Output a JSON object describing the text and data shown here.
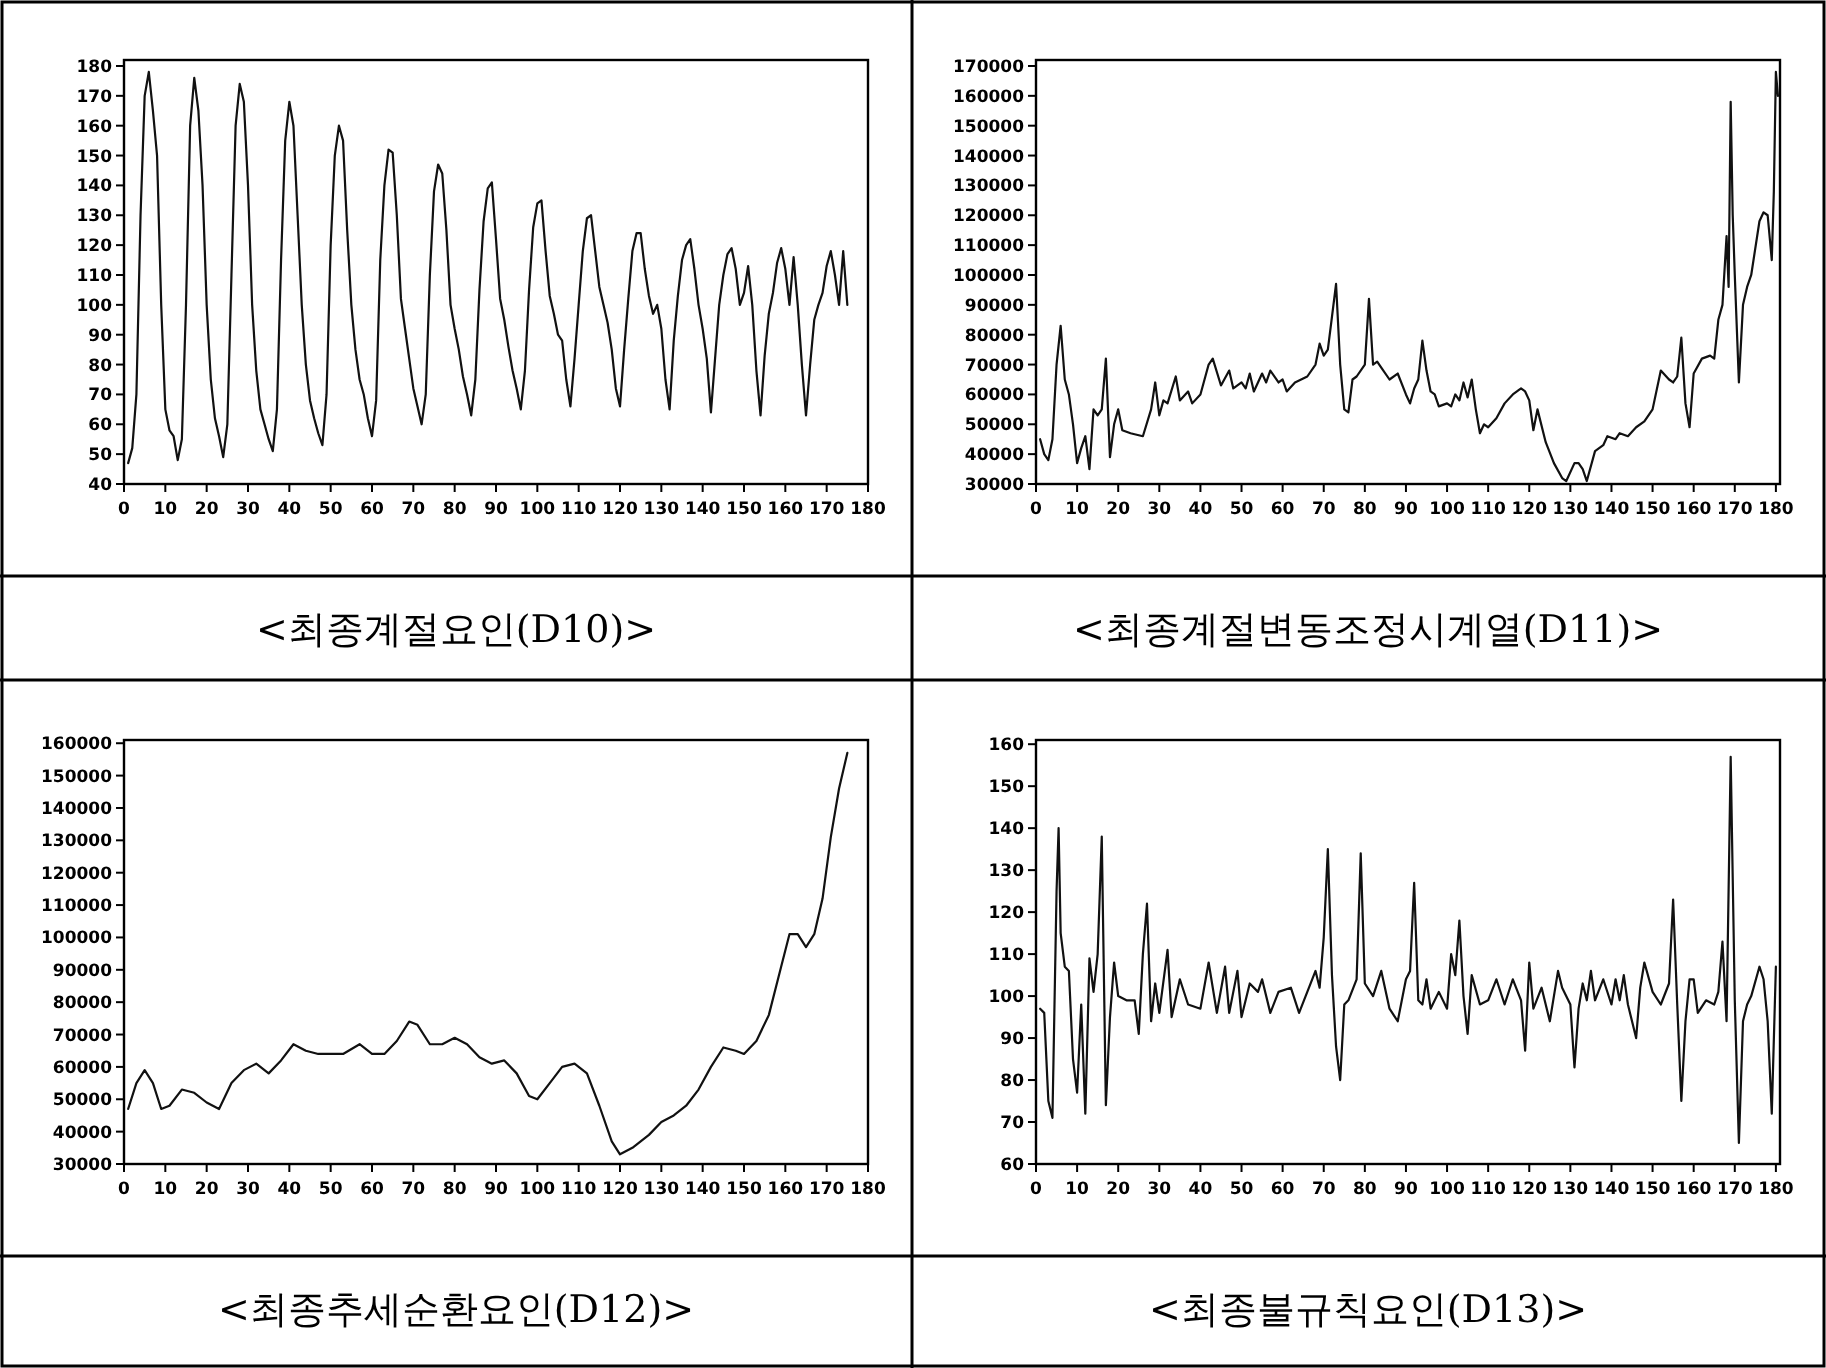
{
  "chart_data": [
    {
      "type": "line",
      "title": "<최종계절요인(D10)>",
      "color": "#111111",
      "xlim": [
        0,
        180
      ],
      "xticks": [
        0,
        10,
        20,
        30,
        40,
        50,
        60,
        70,
        80,
        90,
        100,
        110,
        120,
        130,
        140,
        150,
        160,
        170,
        180
      ],
      "ylim": [
        40,
        182
      ],
      "yticks": [
        40,
        50,
        60,
        70,
        80,
        90,
        100,
        110,
        120,
        130,
        140,
        150,
        160,
        170,
        180
      ],
      "x": [
        1,
        2,
        3,
        4,
        5,
        6,
        7,
        8,
        9,
        10,
        11,
        12,
        13,
        14,
        15,
        16,
        17,
        18,
        19,
        20,
        21,
        22,
        23,
        24,
        25,
        26,
        27,
        28,
        29,
        30,
        31,
        32,
        33,
        34,
        35,
        36,
        37,
        38,
        39,
        40,
        41,
        42,
        43,
        44,
        45,
        46,
        47,
        48,
        49,
        50,
        51,
        52,
        53,
        54,
        55,
        56,
        57,
        58,
        59,
        60,
        61,
        62,
        63,
        64,
        65,
        66,
        67,
        68,
        69,
        70,
        71,
        72,
        73,
        74,
        75,
        76,
        77,
        78,
        79,
        80,
        81,
        82,
        83,
        84,
        85,
        86,
        87,
        88,
        89,
        90,
        91,
        92,
        93,
        94,
        95,
        96,
        97,
        98,
        99,
        100,
        101,
        102,
        103,
        104,
        105,
        106,
        107,
        108,
        109,
        110,
        111,
        112,
        113,
        114,
        115,
        116,
        117,
        118,
        119,
        120,
        121,
        122,
        123,
        124,
        125,
        126,
        127,
        128,
        129,
        130,
        131,
        132,
        133,
        134,
        135,
        136,
        137,
        138,
        139,
        140,
        141,
        142,
        143,
        144,
        145,
        146,
        147,
        148,
        149,
        150,
        151,
        152,
        153,
        154,
        155,
        156,
        157,
        158,
        159,
        160,
        161,
        162,
        163,
        164,
        165,
        166,
        167,
        168,
        169,
        170,
        171,
        172,
        173,
        174,
        175
      ],
      "values": [
        47,
        52,
        70,
        130,
        170,
        178,
        165,
        150,
        100,
        65,
        58,
        56,
        48,
        55,
        100,
        160,
        176,
        165,
        140,
        100,
        75,
        62,
        56,
        49,
        60,
        110,
        160,
        174,
        168,
        140,
        100,
        78,
        65,
        60,
        55,
        51,
        65,
        115,
        155,
        168,
        160,
        130,
        100,
        80,
        68,
        62,
        57,
        53,
        70,
        120,
        150,
        160,
        155,
        125,
        100,
        85,
        75,
        70,
        62,
        56,
        68,
        115,
        140,
        152,
        151,
        130,
        102,
        92,
        82,
        72,
        66,
        60,
        70,
        110,
        138,
        147,
        144,
        125,
        100,
        92,
        85,
        76,
        70,
        63,
        75,
        105,
        128,
        139,
        141,
        122,
        102,
        95,
        86,
        78,
        72,
        65,
        78,
        105,
        126,
        134,
        135,
        118,
        103,
        97,
        90,
        88,
        75,
        66,
        82,
        100,
        118,
        129,
        130,
        118,
        106,
        100,
        94,
        85,
        72,
        66,
        85,
        102,
        118,
        124,
        124,
        112,
        103,
        97,
        100,
        92,
        75,
        65,
        88,
        103,
        115,
        120,
        122,
        112,
        100,
        92,
        82,
        64,
        82,
        100,
        110,
        117,
        119,
        112,
        100,
        104,
        113,
        100,
        78,
        63,
        83,
        97,
        104,
        114,
        119,
        112,
        100,
        116,
        100,
        80,
        63,
        80,
        95,
        100,
        104,
        113,
        118,
        110,
        100,
        118,
        100
      ]
    },
    {
      "type": "line",
      "title": "<최종계절변동조정시계열(D11)>",
      "color": "#111111",
      "xlim": [
        0,
        181
      ],
      "xticks": [
        0,
        10,
        20,
        30,
        40,
        50,
        60,
        70,
        80,
        90,
        100,
        110,
        120,
        130,
        140,
        150,
        160,
        170,
        180
      ],
      "ylim": [
        30000,
        172000
      ],
      "yticks": [
        30000,
        40000,
        50000,
        60000,
        70000,
        80000,
        90000,
        100000,
        110000,
        120000,
        130000,
        140000,
        150000,
        160000,
        170000
      ],
      "x": [
        1,
        2,
        3,
        4,
        5,
        6,
        7,
        8,
        9,
        10,
        11,
        12,
        13,
        14,
        15,
        16,
        17,
        18,
        19,
        20,
        21,
        23,
        26,
        28,
        29,
        30,
        31,
        32,
        34,
        35,
        37,
        38,
        40,
        42,
        43,
        45,
        47,
        48,
        50,
        51,
        52,
        53,
        55,
        56,
        57,
        59,
        60,
        61,
        63,
        66,
        68,
        69,
        70,
        71,
        72,
        73,
        74,
        75,
        76,
        77,
        78,
        80,
        81,
        82,
        83,
        84,
        86,
        88,
        90,
        91,
        92,
        93,
        94,
        95,
        96,
        97,
        98,
        100,
        101,
        102,
        103,
        104,
        105,
        106,
        107,
        108,
        109,
        110,
        112,
        114,
        116,
        118,
        119,
        120,
        121,
        122,
        124,
        126,
        128,
        129,
        131,
        132,
        133,
        134,
        136,
        138,
        139,
        141,
        142,
        144,
        146,
        148,
        150,
        152,
        154,
        155,
        156,
        157,
        158,
        159,
        160,
        162,
        164,
        165,
        166,
        167,
        168,
        168.5,
        169,
        169.5,
        170,
        171,
        172,
        173,
        174,
        176,
        177,
        178,
        179,
        179.5,
        180,
        180.5
      ],
      "values": [
        45000,
        40000,
        38000,
        45000,
        70000,
        83000,
        65000,
        60000,
        50000,
        37000,
        42000,
        46000,
        35000,
        55000,
        53000,
        55000,
        72000,
        39000,
        50000,
        55000,
        48000,
        47000,
        46000,
        55000,
        64000,
        53000,
        58000,
        57000,
        66000,
        58000,
        61000,
        57000,
        60000,
        70000,
        72000,
        63000,
        68000,
        62000,
        64000,
        62000,
        67000,
        61000,
        67000,
        64000,
        68000,
        64000,
        65000,
        61000,
        64000,
        66000,
        70000,
        77000,
        73000,
        75000,
        86000,
        97000,
        70000,
        55000,
        54000,
        65000,
        66000,
        70000,
        92000,
        70000,
        71000,
        69000,
        65000,
        67000,
        60000,
        57000,
        62000,
        65000,
        78000,
        68000,
        61000,
        60000,
        56000,
        57000,
        56000,
        60000,
        58000,
        64000,
        59000,
        65000,
        55000,
        47000,
        50000,
        49000,
        52000,
        57000,
        60000,
        62000,
        61000,
        58000,
        48000,
        55000,
        44000,
        37000,
        32000,
        31000,
        37000,
        37000,
        35000,
        31000,
        41000,
        43000,
        46000,
        45000,
        47000,
        46000,
        49000,
        51000,
        55000,
        68000,
        65000,
        64000,
        66000,
        79000,
        57000,
        49000,
        67000,
        72000,
        73000,
        72000,
        85000,
        90000,
        113000,
        96000,
        158000,
        120000,
        100000,
        64000,
        90000,
        96000,
        100000,
        118000,
        121000,
        120000,
        105000,
        128000,
        168000,
        160000
      ]
    },
    {
      "type": "line",
      "title": "<최종추세순환요인(D12)>",
      "color": "#111111",
      "xlim": [
        0,
        180
      ],
      "xticks": [
        0,
        10,
        20,
        30,
        40,
        50,
        60,
        70,
        80,
        90,
        100,
        110,
        120,
        130,
        140,
        150,
        160,
        170,
        180
      ],
      "ylim": [
        30000,
        161000
      ],
      "yticks": [
        30000,
        40000,
        50000,
        60000,
        70000,
        80000,
        90000,
        100000,
        110000,
        120000,
        130000,
        140000,
        150000,
        160000
      ],
      "x": [
        1,
        3,
        5,
        7,
        9,
        11,
        14,
        17,
        20,
        23,
        26,
        29,
        32,
        35,
        38,
        41,
        44,
        47,
        50,
        53,
        57,
        60,
        63,
        66,
        69,
        71,
        74,
        77,
        80,
        83,
        86,
        89,
        92,
        95,
        98,
        100,
        103,
        106,
        109,
        112,
        115,
        118,
        120,
        123,
        127,
        130,
        133,
        136,
        139,
        142,
        145,
        148,
        150,
        153,
        156,
        159,
        161,
        163,
        165,
        167,
        169,
        171,
        173,
        175
      ],
      "values": [
        47000,
        55000,
        59000,
        55000,
        47000,
        48000,
        53000,
        52000,
        49000,
        47000,
        55000,
        59000,
        61000,
        58000,
        62000,
        67000,
        65000,
        64000,
        64000,
        64000,
        67000,
        64000,
        64000,
        68000,
        74000,
        73000,
        67000,
        67000,
        69000,
        67000,
        63000,
        61000,
        62000,
        58000,
        51000,
        50000,
        55000,
        60000,
        61000,
        58000,
        48000,
        37000,
        33000,
        35000,
        39000,
        43000,
        45000,
        48000,
        53000,
        60000,
        66000,
        65000,
        64000,
        68000,
        76000,
        91000,
        101000,
        101000,
        97000,
        101000,
        112000,
        131000,
        146000,
        157000
      ]
    },
    {
      "type": "line",
      "title": "<최종불규칙요인(D13)>",
      "color": "#111111",
      "xlim": [
        0,
        181
      ],
      "xticks": [
        0,
        10,
        20,
        30,
        40,
        50,
        60,
        70,
        80,
        90,
        100,
        110,
        120,
        130,
        140,
        150,
        160,
        170,
        180
      ],
      "ylim": [
        60,
        161
      ],
      "yticks": [
        60,
        70,
        80,
        90,
        100,
        110,
        120,
        130,
        140,
        150,
        160
      ],
      "x": [
        1,
        2,
        3,
        4,
        5,
        5.5,
        6,
        7,
        8,
        9,
        10,
        11,
        12,
        13,
        14,
        15,
        16,
        17,
        18,
        19,
        20,
        22,
        24,
        25,
        26,
        27,
        28,
        29,
        30,
        32,
        33,
        35,
        37,
        40,
        42,
        44,
        46,
        47,
        49,
        50,
        52,
        54,
        55,
        57,
        59,
        62,
        64,
        66,
        68,
        69,
        70,
        71,
        72,
        73,
        74,
        75,
        76,
        78,
        79,
        80,
        82,
        84,
        86,
        88,
        90,
        91,
        92,
        93,
        94,
        95,
        96,
        98,
        100,
        101,
        102,
        103,
        104,
        105,
        106,
        108,
        110,
        112,
        114,
        116,
        118,
        119,
        120,
        121,
        123,
        125,
        127,
        128,
        130,
        131,
        132,
        133,
        134,
        135,
        136,
        138,
        140,
        141,
        142,
        143,
        144,
        146,
        147,
        148,
        150,
        152,
        154,
        155,
        156,
        157,
        158,
        159,
        160,
        161,
        163,
        165,
        166,
        167,
        168,
        169,
        170,
        171,
        172,
        173,
        174,
        176,
        177,
        178,
        179,
        180
      ],
      "values": [
        97,
        96,
        75,
        71,
        125,
        140,
        115,
        107,
        106,
        85,
        77,
        98,
        72,
        109,
        101,
        110,
        138,
        74,
        95,
        108,
        100,
        99,
        99,
        91,
        110,
        122,
        94,
        103,
        96,
        111,
        95,
        104,
        98,
        97,
        108,
        96,
        107,
        96,
        106,
        95,
        103,
        101,
        104,
        96,
        101,
        102,
        96,
        101,
        106,
        102,
        114,
        135,
        105,
        88,
        80,
        98,
        99,
        104,
        134,
        103,
        100,
        106,
        97,
        94,
        104,
        106,
        127,
        99,
        98,
        104,
        97,
        101,
        97,
        110,
        105,
        118,
        100,
        91,
        105,
        98,
        99,
        104,
        98,
        104,
        99,
        87,
        108,
        97,
        102,
        94,
        106,
        102,
        98,
        83,
        97,
        103,
        99,
        106,
        99,
        104,
        98,
        104,
        99,
        105,
        98,
        90,
        102,
        108,
        101,
        98,
        103,
        123,
        98,
        75,
        94,
        104,
        104,
        96,
        99,
        98,
        101,
        113,
        94,
        157,
        99,
        65,
        94,
        98,
        100,
        107,
        104,
        94,
        72,
        107
      ]
    }
  ]
}
